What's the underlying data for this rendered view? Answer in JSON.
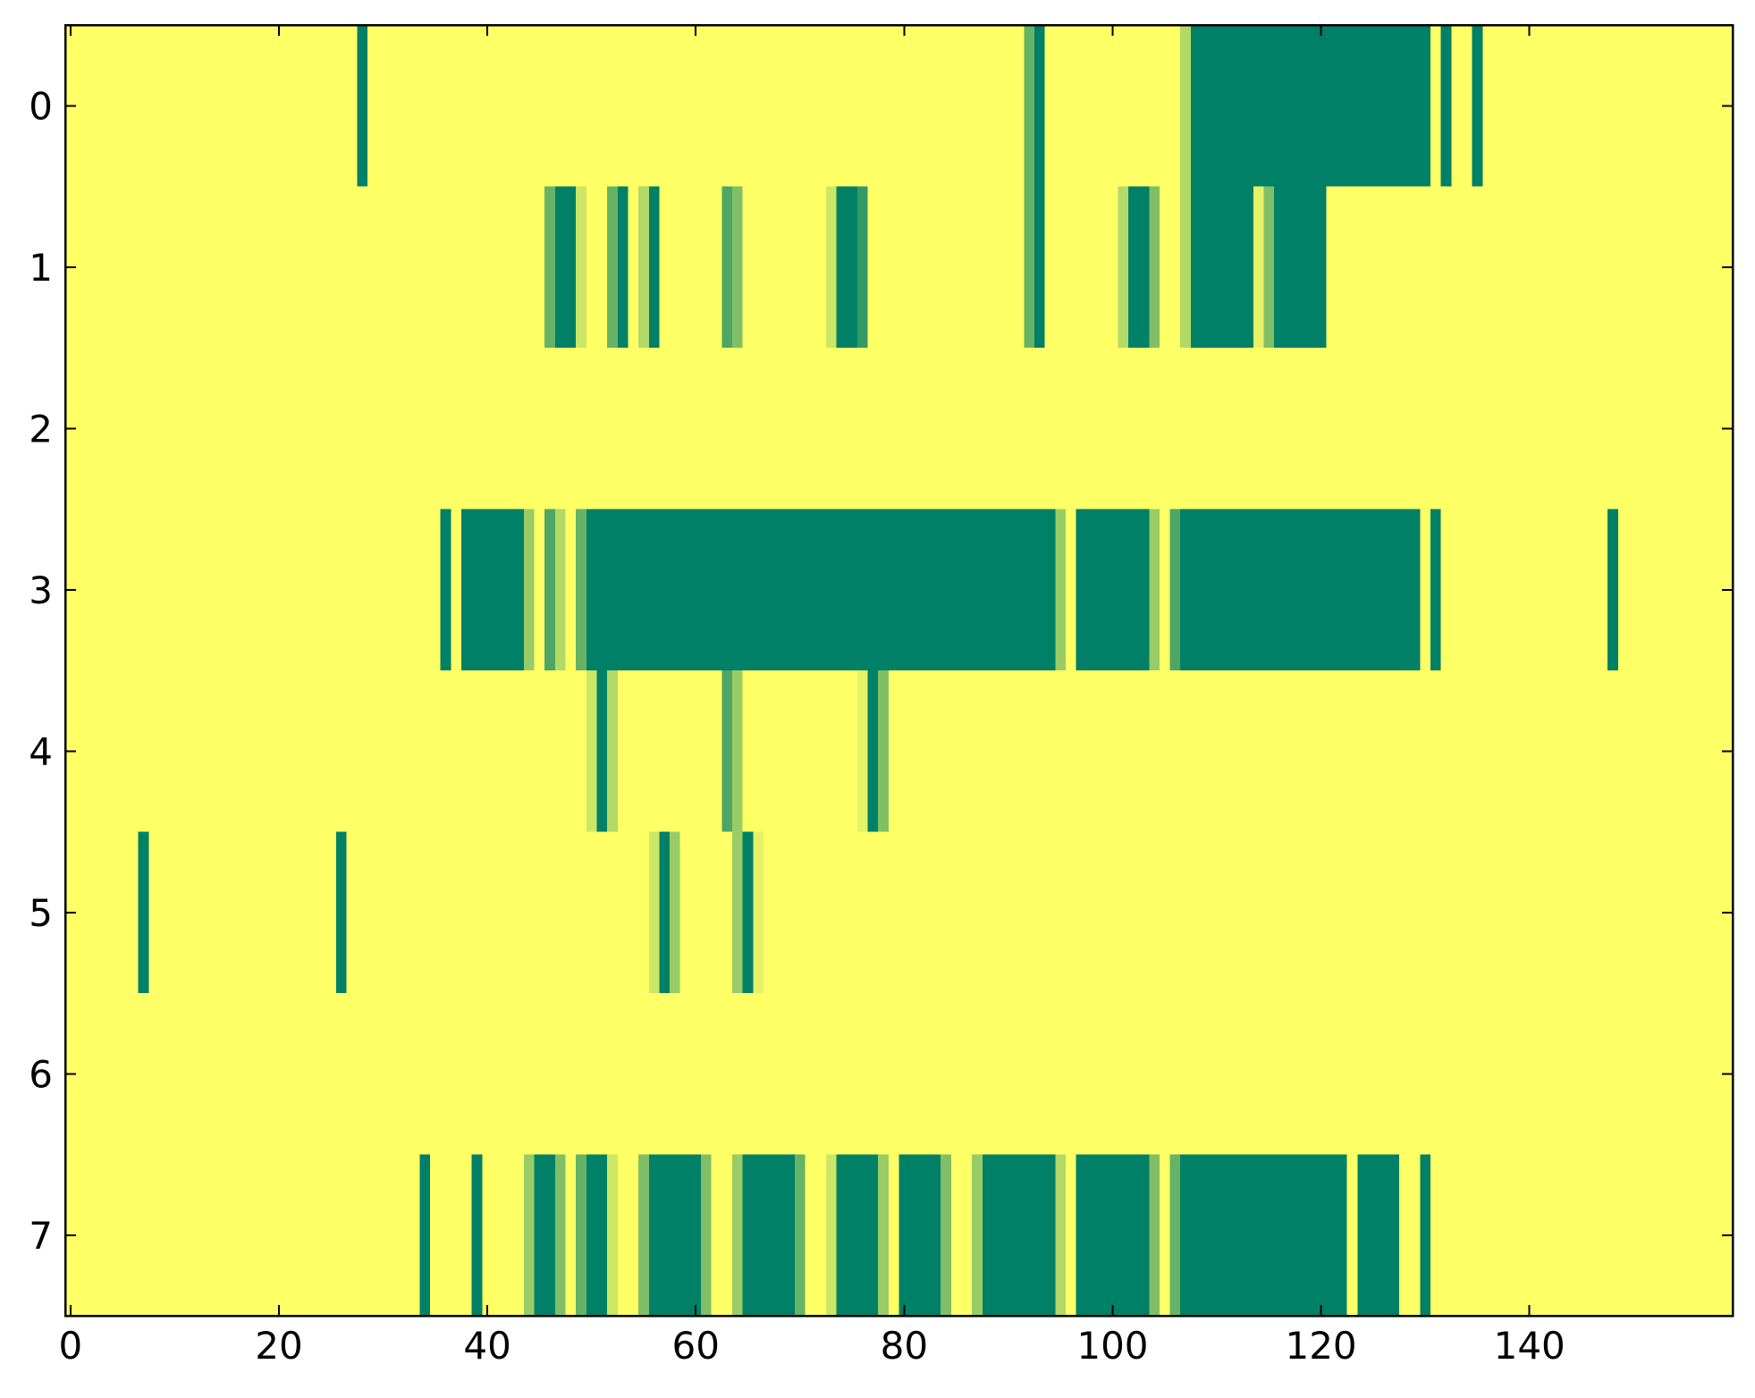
{
  "chart_data": {
    "type": "heatmap",
    "colormap": "summer_r",
    "xlim": [
      -0.5,
      159.5
    ],
    "ylim": [
      7.5,
      -0.5
    ],
    "xticks": [
      0,
      20,
      40,
      60,
      80,
      100,
      120,
      140
    ],
    "yticks": [
      0,
      1,
      2,
      3,
      4,
      5,
      6,
      7
    ],
    "z": [
      [
        0,
        0,
        0,
        0,
        0,
        0,
        0,
        0,
        0,
        0,
        0,
        0,
        0,
        0,
        0,
        0,
        0,
        0,
        0,
        0,
        0,
        0,
        0,
        0,
        0,
        0,
        0,
        0,
        1,
        0,
        0,
        0,
        0,
        0,
        0,
        0,
        0,
        0,
        0,
        0,
        0,
        0,
        0,
        0,
        0,
        0,
        0,
        0,
        0,
        0,
        0,
        0,
        0,
        0,
        0,
        0,
        0,
        0,
        0,
        0,
        0,
        0,
        0,
        0,
        0,
        0,
        0,
        0,
        0,
        0,
        0,
        0,
        0,
        0,
        0,
        0,
        0,
        0,
        0,
        0,
        0,
        0,
        0,
        0,
        0,
        0,
        0,
        0,
        0,
        0,
        0,
        0,
        0.6,
        1,
        0,
        0,
        0,
        0,
        0,
        0,
        0,
        0,
        0,
        0,
        0,
        0,
        0,
        0.3,
        1,
        1,
        1,
        1,
        1,
        1,
        1,
        1,
        1,
        1,
        1,
        1,
        1,
        1,
        1,
        1,
        1,
        1,
        1,
        1,
        1,
        1,
        1,
        0,
        1,
        0,
        0,
        1,
        0,
        0,
        0,
        0,
        0,
        0,
        0,
        0,
        0,
        0,
        0,
        0,
        0,
        0,
        0,
        0,
        0,
        0,
        0,
        0,
        0,
        0,
        0,
        0
      ],
      [
        0,
        0,
        0,
        0,
        0,
        0,
        0,
        0,
        0,
        0,
        0,
        0,
        0,
        0,
        0,
        0,
        0,
        0,
        0,
        0,
        0,
        0,
        0,
        0,
        0,
        0,
        0,
        0,
        0,
        0,
        0,
        0,
        0,
        0,
        0,
        0,
        0,
        0,
        0,
        0,
        0,
        0,
        0,
        0,
        0,
        0,
        0.6,
        1,
        1,
        0.2,
        0,
        0,
        0.6,
        1,
        0,
        0.3,
        1,
        0,
        0,
        0,
        0,
        0,
        0,
        0.7,
        0.5,
        0,
        0,
        0,
        0,
        0,
        0,
        0,
        0,
        0.2,
        1,
        1,
        0.8,
        0,
        0,
        0,
        0,
        0,
        0,
        0,
        0,
        0,
        0,
        0,
        0,
        0,
        0,
        0,
        0.6,
        1,
        0,
        0,
        0,
        0,
        0,
        0,
        0,
        0.3,
        1,
        1,
        0.5,
        0,
        0,
        0.3,
        1,
        1,
        1,
        1,
        1,
        1,
        0.1,
        0.5,
        1,
        1,
        1,
        1,
        1,
        0,
        0,
        0,
        0,
        0,
        0,
        0,
        0,
        0,
        0,
        0,
        0,
        0,
        0,
        0,
        0,
        0,
        0,
        0,
        0,
        0,
        0,
        0,
        0,
        0,
        0,
        0,
        0,
        0,
        0,
        0,
        0,
        0,
        0,
        0,
        0,
        0,
        0,
        0
      ],
      [
        0,
        0,
        0,
        0,
        0,
        0,
        0,
        0,
        0,
        0,
        0,
        0,
        0,
        0,
        0,
        0,
        0,
        0,
        0,
        0,
        0,
        0,
        0,
        0,
        0,
        0,
        0,
        0,
        0,
        0,
        0,
        0,
        0,
        0,
        0,
        0,
        0,
        0,
        0,
        0,
        0,
        0,
        0,
        0,
        0,
        0,
        0,
        0,
        0,
        0,
        0,
        0,
        0,
        0,
        0,
        0,
        0,
        0,
        0,
        0,
        0,
        0,
        0,
        0,
        0,
        0,
        0,
        0,
        0,
        0,
        0,
        0,
        0,
        0,
        0,
        0,
        0,
        0,
        0,
        0,
        0,
        0,
        0,
        0,
        0,
        0,
        0,
        0,
        0,
        0,
        0,
        0,
        0,
        0,
        0,
        0,
        0,
        0,
        0,
        0,
        0,
        0,
        0,
        0,
        0,
        0,
        0,
        0,
        0,
        0,
        0,
        0,
        0,
        0,
        0,
        0,
        0,
        0,
        0,
        0,
        0,
        0,
        0,
        0,
        0,
        0,
        0,
        0,
        0,
        0,
        0,
        0,
        0,
        0,
        0,
        0,
        0,
        0,
        0,
        0,
        0,
        0,
        0,
        0,
        0,
        0,
        0,
        0,
        0,
        0,
        0,
        0,
        0,
        0,
        0,
        0,
        0,
        0,
        0,
        0
      ],
      [
        0,
        0,
        0,
        0,
        0,
        0,
        0,
        0,
        0,
        0,
        0,
        0,
        0,
        0,
        0,
        0,
        0,
        0,
        0,
        0,
        0,
        0,
        0,
        0,
        0,
        0,
        0,
        0,
        0,
        0,
        0,
        0,
        0,
        0,
        0,
        0,
        1,
        0,
        1,
        1,
        1,
        1,
        1,
        1,
        0.4,
        0,
        0.7,
        0.3,
        0,
        0.6,
        1,
        1,
        1,
        1,
        1,
        1,
        1,
        1,
        1,
        1,
        1,
        1,
        1,
        1,
        1,
        1,
        1,
        1,
        1,
        1,
        1,
        1,
        1,
        1,
        1,
        1,
        1,
        1,
        1,
        1,
        1,
        1,
        1,
        1,
        1,
        1,
        1,
        1,
        1,
        1,
        1,
        1,
        1,
        1,
        1,
        0.4,
        0,
        1,
        1,
        1,
        1,
        1,
        1,
        1,
        0.4,
        0,
        0.7,
        1,
        1,
        1,
        1,
        1,
        1,
        1,
        1,
        1,
        1,
        1,
        1,
        1,
        1,
        1,
        1,
        1,
        1,
        1,
        1,
        1,
        1,
        1,
        0,
        1,
        0,
        0,
        0,
        0,
        0,
        0,
        0,
        0,
        0,
        0,
        0,
        0,
        0,
        0,
        0,
        0,
        1,
        0,
        0,
        0,
        0,
        0,
        0,
        0,
        0,
        0,
        0,
        0
      ],
      [
        0,
        0,
        0,
        0,
        0,
        0,
        0,
        0,
        0,
        0,
        0,
        0,
        0,
        0,
        0,
        0,
        0,
        0,
        0,
        0,
        0,
        0,
        0,
        0,
        0,
        0,
        0,
        0,
        0,
        0,
        0,
        0,
        0,
        0,
        0,
        0,
        0,
        0,
        0,
        0,
        0,
        0,
        0,
        0,
        0,
        0,
        0,
        0,
        0,
        0,
        0.2,
        1,
        0.3,
        0,
        0,
        0,
        0,
        0,
        0,
        0,
        0,
        0,
        0,
        0.7,
        0.4,
        0,
        0,
        0,
        0,
        0,
        0,
        0,
        0,
        0,
        0,
        0,
        0.1,
        1,
        0.5,
        0,
        0,
        0,
        0,
        0,
        0,
        0,
        0,
        0,
        0,
        0,
        0,
        0,
        0,
        0,
        0,
        0,
        0,
        0,
        0,
        0,
        0,
        0,
        0,
        0,
        0,
        0,
        0,
        0,
        0,
        0,
        0,
        0,
        0,
        0,
        0,
        0,
        0,
        0,
        0,
        0,
        0,
        0,
        0,
        0,
        0,
        0,
        0,
        0,
        0,
        0,
        0,
        0,
        0,
        0,
        0,
        0,
        0,
        0,
        0,
        0,
        0,
        0,
        0,
        0,
        0,
        0,
        0,
        0,
        0,
        0,
        0,
        0,
        0,
        0,
        0,
        0,
        0,
        0,
        0,
        0
      ],
      [
        0,
        0,
        0,
        0,
        0,
        0,
        0,
        1,
        0,
        0,
        0,
        0,
        0,
        0,
        0,
        0,
        0,
        0,
        0,
        0,
        0,
        0,
        0,
        0,
        0,
        0,
        1,
        0,
        0,
        0,
        0,
        0,
        0,
        0,
        0,
        0,
        0,
        0,
        0,
        0,
        0,
        0,
        0,
        0,
        0,
        0,
        0,
        0,
        0,
        0,
        0,
        0,
        0,
        0,
        0,
        0,
        0.2,
        1,
        0.4,
        0,
        0,
        0,
        0,
        0,
        0.4,
        1,
        0.1,
        0,
        0,
        0,
        0,
        0,
        0,
        0,
        0,
        0,
        0,
        0,
        0,
        0,
        0,
        0,
        0,
        0,
        0,
        0,
        0,
        0,
        0,
        0,
        0,
        0,
        0,
        0,
        0,
        0,
        0,
        0,
        0,
        0,
        0,
        0,
        0,
        0,
        0,
        0,
        0,
        0,
        0,
        0,
        0,
        0,
        0,
        0,
        0,
        0,
        0,
        0,
        0,
        0,
        0,
        0,
        0,
        0,
        0,
        0,
        0,
        0,
        0,
        0,
        0,
        0,
        0,
        0,
        0,
        0,
        0,
        0,
        0,
        0,
        0,
        0,
        0,
        0,
        0,
        0,
        0,
        0,
        0,
        0,
        0,
        0,
        0,
        0,
        0,
        0,
        0,
        0,
        0,
        0
      ],
      [
        0,
        0,
        0,
        0,
        0,
        0,
        0,
        0,
        0,
        0,
        0,
        0,
        0,
        0,
        0,
        0,
        0,
        0,
        0,
        0,
        0,
        0,
        0,
        0,
        0,
        0,
        0,
        0,
        0,
        0,
        0,
        0,
        0,
        0,
        0,
        0,
        0,
        0,
        0,
        0,
        0,
        0,
        0,
        0,
        0,
        0,
        0,
        0,
        0,
        0,
        0,
        0,
        0,
        0,
        0,
        0,
        0,
        0,
        0,
        0,
        0,
        0,
        0,
        0,
        0,
        0,
        0,
        0,
        0,
        0,
        0,
        0,
        0,
        0,
        0,
        0,
        0,
        0,
        0,
        0,
        0,
        0,
        0,
        0,
        0,
        0,
        0,
        0,
        0,
        0,
        0,
        0,
        0,
        0,
        0,
        0,
        0,
        0,
        0,
        0,
        0,
        0,
        0,
        0,
        0,
        0,
        0,
        0,
        0,
        0,
        0,
        0,
        0,
        0,
        0,
        0,
        0,
        0,
        0,
        0,
        0,
        0,
        0,
        0,
        0,
        0,
        0,
        0,
        0,
        0,
        0,
        0,
        0,
        0,
        0,
        0,
        0,
        0,
        0,
        0,
        0,
        0,
        0,
        0,
        0,
        0,
        0,
        0,
        0,
        0,
        0,
        0,
        0,
        0,
        0,
        0,
        0,
        0,
        0,
        0
      ],
      [
        0,
        0,
        0,
        0,
        0,
        0,
        0,
        0,
        0,
        0,
        0,
        0,
        0,
        0,
        0,
        0,
        0,
        0,
        0,
        0,
        0,
        0,
        0,
        0,
        0,
        0,
        0,
        0,
        0,
        0,
        0,
        0,
        0,
        0,
        1,
        0,
        0,
        0,
        0,
        1,
        0,
        0,
        0,
        0,
        0.4,
        1,
        1,
        0.5,
        0,
        0.6,
        1,
        1,
        0.2,
        0,
        0,
        0.5,
        1,
        1,
        1,
        1,
        1,
        0.5,
        0,
        0,
        0.4,
        1,
        1,
        1,
        1,
        1,
        0.6,
        0,
        0,
        0.2,
        1,
        1,
        1,
        1,
        0.4,
        0,
        1,
        1,
        1,
        1,
        0.5,
        0,
        0,
        0.4,
        1,
        1,
        1,
        1,
        1,
        1,
        1,
        0.3,
        0,
        1,
        1,
        1,
        1,
        1,
        1,
        1,
        0.5,
        0,
        0.6,
        1,
        1,
        1,
        1,
        1,
        1,
        1,
        1,
        1,
        1,
        1,
        1,
        1,
        1,
        1,
        1,
        0,
        1,
        1,
        1,
        1,
        0,
        0,
        1,
        0,
        0,
        0,
        0,
        0,
        0,
        0,
        0,
        0,
        0,
        0,
        0,
        0,
        0,
        0,
        0,
        0,
        0,
        0,
        0,
        0,
        0,
        0,
        0,
        0,
        0,
        0,
        0,
        0
      ]
    ]
  }
}
